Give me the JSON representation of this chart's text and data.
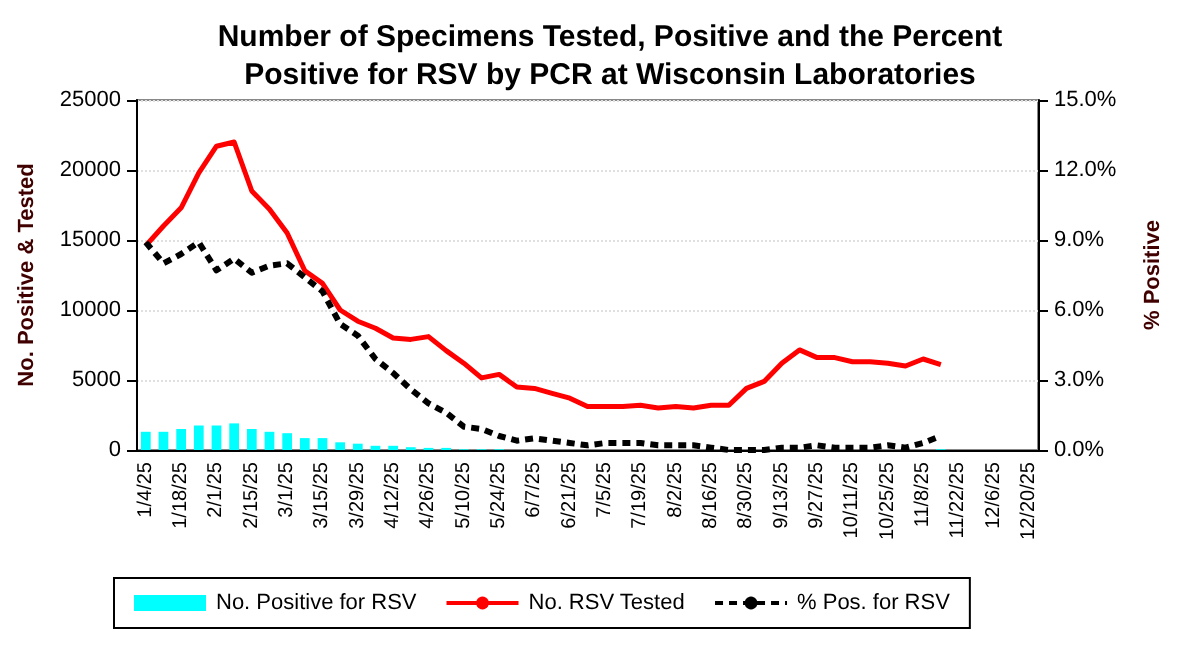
{
  "chart_data": {
    "type": "bar",
    "title": "Number of Specimens Tested, Positive and the Percent\nPositive for RSV by PCR at Wisconsin Laboratories",
    "ylabel": "No. Positive & Tested",
    "y2label": "% Positive",
    "categories": [
      "1/4/25",
      null,
      "1/18/25",
      null,
      "2/1/25",
      null,
      "2/15/25",
      null,
      "3/1/25",
      null,
      "3/15/25",
      null,
      "3/29/25",
      null,
      "4/12/25",
      null,
      "4/26/25",
      null,
      "5/10/25",
      null,
      "5/24/25",
      null,
      "6/7/25",
      null,
      "6/21/25",
      null,
      "7/5/25",
      null,
      "7/19/25",
      null,
      "8/2/25",
      null,
      "8/16/25",
      null,
      "8/30/25",
      null,
      "9/13/25",
      null,
      "9/27/25",
      null,
      "10/11/25",
      null,
      "10/25/25",
      null,
      "11/8/25",
      null,
      "11/22/25",
      null,
      "12/6/25",
      null,
      "12/20/25"
    ],
    "series": [
      {
        "name": "No. Positive for RSV",
        "color": "#00ffff",
        "values": [
          1300,
          1300,
          1500,
          1750,
          1750,
          1900,
          1500,
          1300,
          1200,
          850,
          850,
          550,
          450,
          300,
          300,
          200,
          150,
          150,
          50,
          50,
          50,
          0,
          0,
          0,
          0,
          0,
          0,
          0,
          0,
          0,
          0,
          0,
          0,
          0,
          0,
          0,
          0,
          0,
          0,
          0,
          0,
          0,
          0,
          0,
          0,
          50,
          null,
          null,
          null,
          null,
          null
        ]
      },
      {
        "name": "No. RSV Tested",
        "type": "line",
        "color": "#ff0000",
        "line_style": "solid",
        "values": [
          14600,
          16000,
          17300,
          19800,
          21700,
          22000,
          18500,
          17200,
          15500,
          12800,
          11900,
          10000,
          9200,
          8700,
          8000,
          7900,
          8100,
          7100,
          6200,
          5150,
          5400,
          4500,
          4400,
          4050,
          3700,
          3100,
          3100,
          3100,
          3200,
          3000,
          3100,
          3000,
          3200,
          3200,
          4400,
          4900,
          6200,
          7150,
          6600,
          6600,
          6300,
          6300,
          6200,
          6000,
          6500,
          6100,
          null,
          null,
          null,
          null,
          null
        ]
      },
      {
        "name": "% Pos. for RSV",
        "type": "line",
        "axis": "y2",
        "color": "#000000",
        "line_style": "dashed",
        "values": [
          8.9,
          8.0,
          8.4,
          8.9,
          7.7,
          8.2,
          7.6,
          7.9,
          8.0,
          7.4,
          6.8,
          5.4,
          4.9,
          3.9,
          3.3,
          2.6,
          2.0,
          1.6,
          1.0,
          0.9,
          0.6,
          0.4,
          0.5,
          0.4,
          0.3,
          0.2,
          0.3,
          0.3,
          0.3,
          0.2,
          0.2,
          0.2,
          0.1,
          0.0,
          0.0,
          0.0,
          0.1,
          0.1,
          0.2,
          0.1,
          0.1,
          0.1,
          0.2,
          0.1,
          0.3,
          0.6,
          null,
          null,
          null,
          null,
          null
        ]
      }
    ],
    "ylim": [
      0,
      25000
    ],
    "yticks": [
      0,
      5000,
      10000,
      15000,
      20000,
      25000
    ],
    "y2lim": [
      0,
      15
    ],
    "y2ticks": [
      {
        "value": 0,
        "label": "0.0%"
      },
      {
        "value": 3,
        "label": "3.0%"
      },
      {
        "value": 6,
        "label": "6.0%"
      },
      {
        "value": 9,
        "label": "9.0%"
      },
      {
        "value": 12,
        "label": "12.0%"
      },
      {
        "value": 15,
        "label": "15.0%"
      }
    ],
    "grid": "y",
    "legend": "bottom",
    "marker": "none"
  }
}
